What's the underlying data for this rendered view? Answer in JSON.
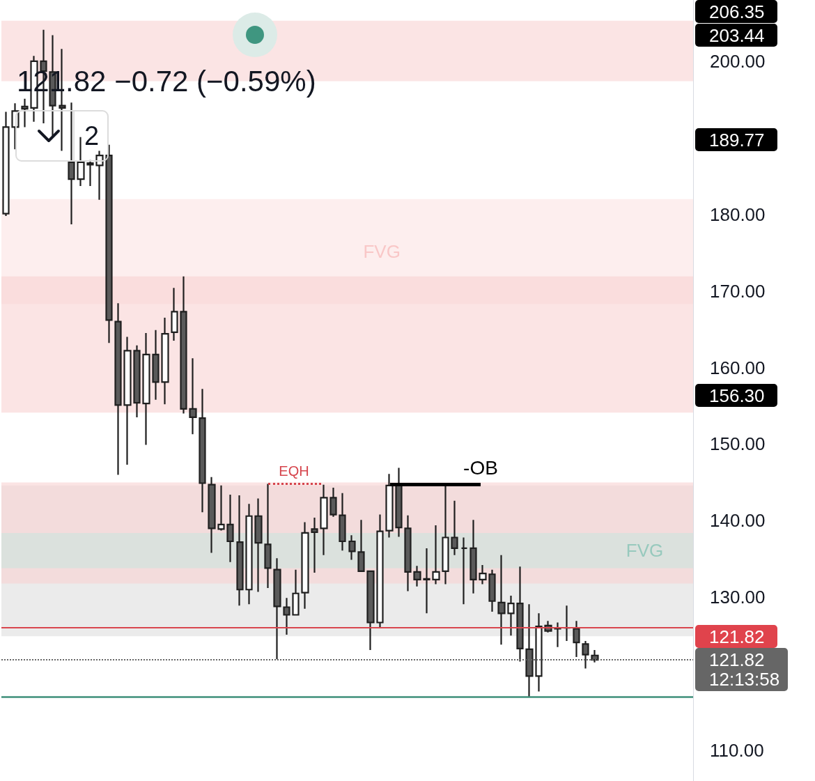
{
  "chart_data": {
    "type": "candlestick",
    "subtitle": "121.82 −0.72 (−0.59%)",
    "categories": [
      null,
      null,
      null,
      null,
      null,
      null,
      null,
      null,
      null,
      null,
      null,
      null,
      null,
      null,
      null,
      null,
      null,
      null,
      null,
      null,
      null,
      null,
      null,
      null,
      null,
      null,
      null,
      null,
      null,
      null,
      null,
      null,
      null,
      null,
      null,
      null,
      null,
      null,
      null,
      null,
      null,
      null,
      null,
      null,
      null,
      null,
      null,
      null,
      null,
      null,
      null,
      null,
      null,
      null,
      null,
      null,
      null,
      null,
      null,
      null,
      null,
      null,
      null,
      null,
      null,
      null,
      null,
      null,
      null,
      null,
      null,
      null,
      null,
      null
    ],
    "ohlc": [
      [
        180.1,
        193.4,
        179.8,
        191.4
      ],
      [
        191.4,
        194.5,
        188.5,
        193.5
      ],
      [
        194.1,
        195.1,
        191.4,
        193.8
      ],
      [
        193.9,
        200.7,
        192.1,
        200.0
      ],
      [
        200.0,
        204.1,
        191.9,
        198.7
      ],
      [
        198.6,
        203.4,
        190.1,
        194.2
      ],
      [
        194.2,
        201.6,
        188.3,
        193.9
      ],
      [
        186.8,
        194.6,
        178.7,
        184.6
      ],
      [
        184.6,
        190.1,
        183.7,
        186.8
      ],
      [
        186.7,
        187.1,
        183.7,
        186.5
      ],
      [
        186.4,
        188.3,
        181.9,
        187.7
      ],
      [
        187.7,
        189.1,
        163.2,
        166.2
      ],
      [
        166.0,
        168.4,
        146.0,
        155.1
      ],
      [
        155.1,
        164.0,
        147.3,
        162.2
      ],
      [
        162.2,
        162.9,
        153.5,
        155.4
      ],
      [
        155.3,
        164.5,
        149.9,
        161.7
      ],
      [
        161.7,
        164.9,
        155.8,
        158.1
      ],
      [
        158.1,
        166.5,
        155.2,
        164.4
      ],
      [
        164.6,
        170.4,
        163.5,
        167.3
      ],
      [
        167.3,
        171.9,
        154.0,
        154.6
      ],
      [
        154.6,
        161.2,
        151.3,
        153.5
      ],
      [
        153.4,
        157.2,
        141.1,
        144.9
      ],
      [
        144.7,
        145.7,
        135.8,
        139.0
      ],
      [
        138.9,
        144.6,
        138.7,
        139.5
      ],
      [
        139.5,
        143.4,
        134.6,
        137.3
      ],
      [
        137.2,
        143.3,
        128.9,
        131.0
      ],
      [
        131.0,
        142.2,
        129.1,
        140.6
      ],
      [
        140.6,
        142.9,
        130.7,
        137.1
      ],
      [
        136.9,
        144.8,
        131.2,
        133.8
      ],
      [
        133.6,
        135.1,
        121.9,
        128.8
      ],
      [
        128.7,
        129.9,
        125.1,
        127.7
      ],
      [
        127.7,
        133.6,
        127.6,
        130.5
      ],
      [
        130.6,
        139.8,
        128.5,
        138.4
      ],
      [
        138.9,
        140.4,
        133.2,
        138.5
      ],
      [
        139.0,
        144.7,
        135.5,
        143.0
      ],
      [
        143.0,
        144.3,
        140.5,
        140.8
      ],
      [
        140.7,
        143.6,
        136.1,
        137.3
      ],
      [
        137.3,
        138.1,
        134.9,
        136.0
      ],
      [
        135.9,
        140.1,
        133.3,
        133.4
      ],
      [
        133.4,
        133.5,
        123.1,
        126.7
      ],
      [
        126.7,
        140.8,
        126.1,
        138.6
      ],
      [
        138.7,
        146.1,
        137.8,
        144.6
      ],
      [
        144.7,
        146.9,
        137.9,
        139.1
      ],
      [
        139.0,
        140.7,
        130.8,
        133.3
      ],
      [
        133.3,
        134.1,
        131.4,
        132.3
      ],
      [
        132.4,
        136.4,
        127.9,
        132.3
      ],
      [
        132.3,
        139.4,
        131.7,
        133.3
      ],
      [
        133.4,
        144.9,
        131.7,
        137.8
      ],
      [
        137.8,
        142.6,
        135.5,
        136.4
      ],
      [
        136.4,
        137.8,
        129.1,
        136.4
      ],
      [
        136.4,
        140.1,
        130.5,
        132.3
      ],
      [
        132.3,
        134.2,
        131.7,
        133.1
      ],
      [
        133.0,
        133.6,
        128.1,
        129.5
      ],
      [
        129.3,
        135.5,
        123.8,
        127.9
      ],
      [
        127.9,
        130.2,
        125.0,
        129.2
      ],
      [
        129.2,
        134.0,
        121.6,
        123.3
      ],
      [
        123.2,
        129.1,
        117.0,
        119.7
      ],
      [
        119.7,
        127.9,
        117.7,
        126.2
      ],
      [
        126.3,
        126.9,
        125.4,
        125.6
      ],
      [
        126.0,
        126.7,
        123.5,
        125.9
      ],
      [
        126.0,
        128.9,
        124.3,
        126.0
      ],
      [
        125.9,
        126.9,
        122.2,
        124.1
      ],
      [
        123.9,
        124.3,
        120.7,
        122.5
      ],
      [
        122.4,
        123.1,
        121.5,
        121.82
      ],
      null,
      null,
      null,
      null,
      null,
      null,
      null,
      null,
      null,
      null
    ],
    "ylim": [
      106,
      208
    ],
    "yticks": [
      {
        "value": 110,
        "label": "110.00"
      },
      {
        "value": 130,
        "label": "130.00"
      },
      {
        "value": 140,
        "label": "140.00"
      },
      {
        "value": 150,
        "label": "150.00"
      },
      {
        "value": 160,
        "label": "160.00"
      },
      {
        "value": 170,
        "label": "170.00"
      },
      {
        "value": 180,
        "label": "180.00"
      },
      {
        "value": 200,
        "label": "200.00"
      }
    ],
    "tick_labels": "y",
    "grid": false,
    "bands": [
      {
        "axis": "y",
        "from": 197.4,
        "to": 205.3,
        "color": "#f8d2d2"
      },
      {
        "axis": "y",
        "from": 168.3,
        "to": 182.0,
        "color": "#fce3e3",
        "label": "FVG"
      },
      {
        "axis": "y",
        "from": 154.1,
        "to": 171.9,
        "color": "#f8d2d2"
      },
      {
        "axis": "y",
        "from": 124.9,
        "to": 144.6,
        "color": "#dedede"
      },
      {
        "axis": "y",
        "from": 131.8,
        "to": 145.0,
        "color": "#f8d2d2"
      },
      {
        "axis": "y",
        "from": 133.8,
        "to": 138.4,
        "color": "#cbe4de",
        "label": "FVG"
      }
    ],
    "ref_lines": [
      {
        "axis": "y",
        "value": 126,
        "color": "#d9464e"
      },
      {
        "axis": "y",
        "value": 121.82,
        "color": "#666666",
        "line_style": "dotted",
        "label": "121.82\n12:13:58"
      },
      {
        "axis": "y",
        "value": 117,
        "color": "#3e8f7a"
      },
      {
        "axis": "y",
        "value": 144.7,
        "color": "#000000",
        "label": "-OB"
      },
      {
        "axis": "y",
        "value": 144.8,
        "color": "#d6454d",
        "line_style": "dotted",
        "label": "EQH"
      }
    ],
    "annotations": [
      "206.35",
      "203.44",
      "189.77",
      "156.30",
      "121.82",
      "2"
    ]
  }
}
